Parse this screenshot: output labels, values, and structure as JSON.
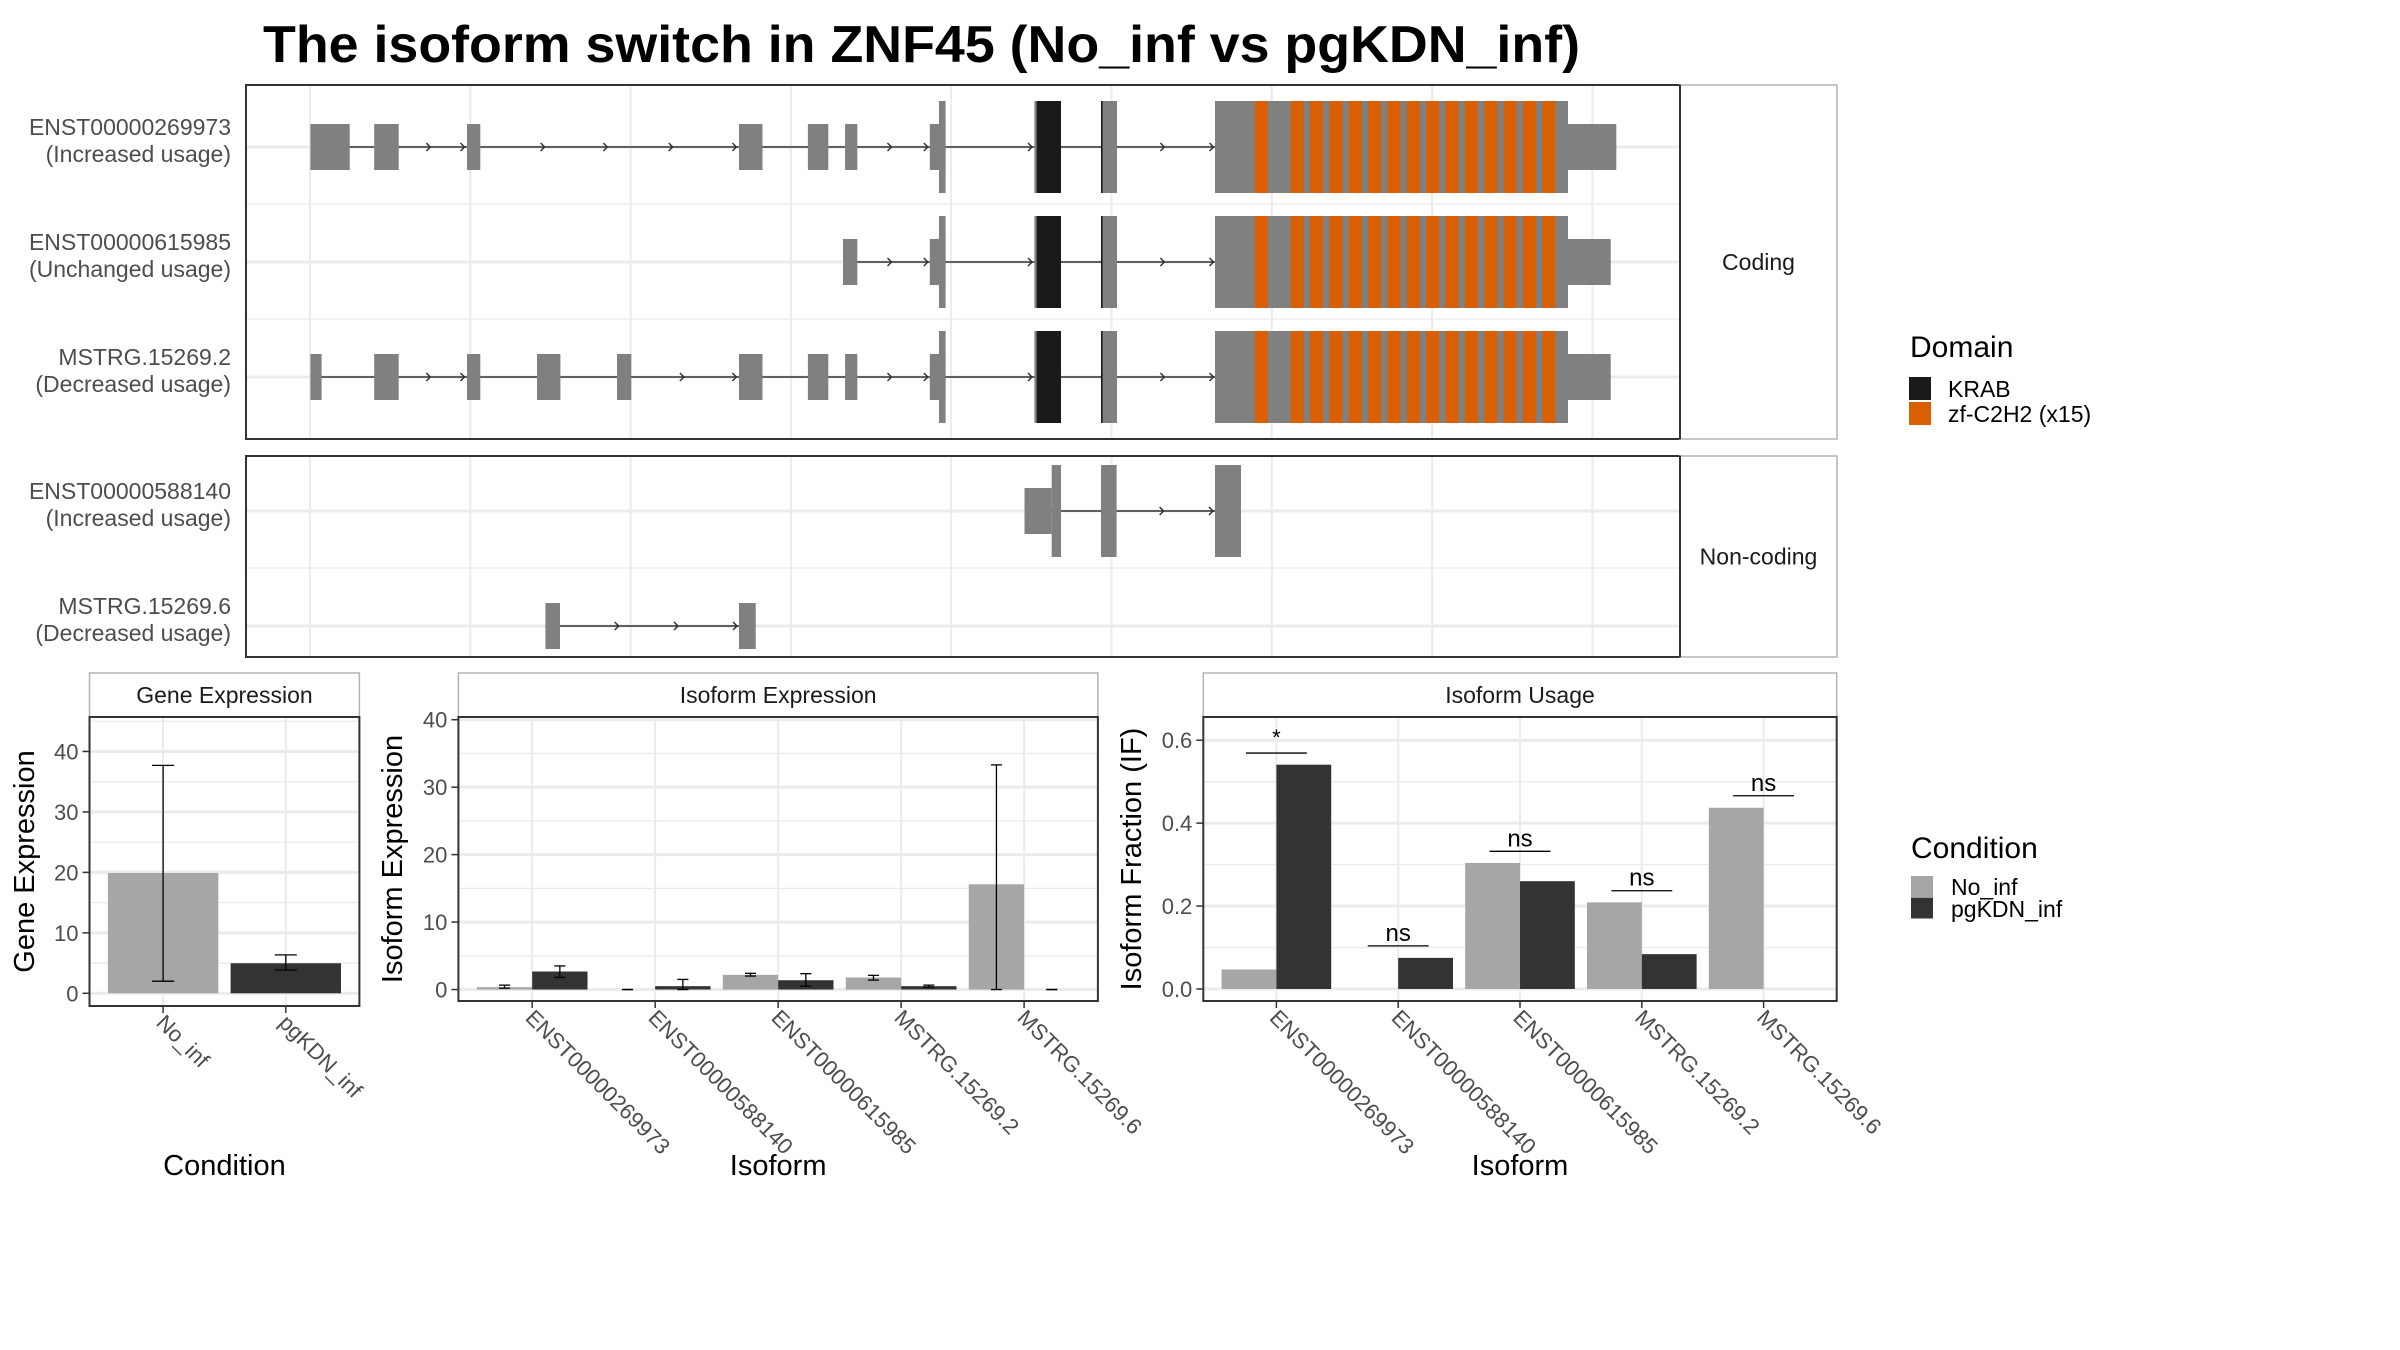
{
  "title": "The isoform switch in ZNF45 (No_inf vs pgKDN_inf)",
  "colors": {
    "exon": "#808080",
    "krab": "#1a1a1a",
    "zf_c2h2": "#d95f02",
    "no_inf": "#a6a6a6",
    "pgkdn_inf": "#333333",
    "grid": "#ebebeb",
    "panel_border": "#333333",
    "strip_border": "#b3b3b3",
    "tick_text": "#4d4d4d"
  },
  "transcript_plot": {
    "strips": [
      "Coding",
      "Non-coding"
    ],
    "transcripts": [
      {
        "id": "ENST00000269973",
        "usage": "(Increased usage)",
        "strip": "Coding"
      },
      {
        "id": "ENST00000615985",
        "usage": "(Unchanged usage)",
        "strip": "Coding"
      },
      {
        "id": "MSTRG.15269.2",
        "usage": "(Decreased usage)",
        "strip": "Coding"
      },
      {
        "id": "ENST00000588140",
        "usage": "(Increased usage)",
        "strip": "Non-coding"
      },
      {
        "id": "MSTRG.15269.6",
        "usage": "(Decreased usage)",
        "strip": "Non-coding"
      }
    ],
    "domain_legend": {
      "title": "Domain",
      "items": [
        {
          "label": "KRAB",
          "color": "#1a1a1a"
        },
        {
          "label": "zf-C2H2 (x15)",
          "color": "#d95f02"
        }
      ]
    }
  },
  "condition_legend": {
    "title": "Condition",
    "items": [
      {
        "label": "No_inf",
        "color": "#a6a6a6"
      },
      {
        "label": "pgKDN_inf",
        "color": "#333333"
      }
    ]
  },
  "chart_data": [
    {
      "type": "bar",
      "title": "Gene Expression",
      "xlabel": "Condition",
      "ylabel": "Gene Expression",
      "categories": [
        "No_inf",
        "pgKDN_inf"
      ],
      "category_colors": [
        "#a6a6a6",
        "#333333"
      ],
      "series": [
        {
          "name": "Gene Expression",
          "values": [
            19.9,
            4.97
          ],
          "error_low": [
            2.0,
            3.86
          ],
          "error_high": [
            37.7,
            6.35
          ]
        }
      ],
      "ylim": [
        -2.1,
        45.7
      ],
      "yticks": [
        0,
        10,
        20,
        30,
        40
      ],
      "ytick_labels": [
        "0",
        "10",
        "20",
        "30",
        "40"
      ],
      "grid": true
    },
    {
      "type": "bar",
      "title": "Isoform Expression",
      "xlabel": "Isoform",
      "ylabel": "Isoform Expression",
      "categories": [
        "ENST00000269973",
        "ENST00000588140",
        "ENST00000615985",
        "MSTRG.15269.2",
        "MSTRG.15269.6"
      ],
      "series": [
        {
          "name": "No_inf",
          "color": "#a6a6a6",
          "values": [
            0.35,
            0,
            2.18,
            1.78,
            15.6
          ],
          "error_low": [
            0.2,
            0,
            2.0,
            1.4,
            0
          ],
          "error_high": [
            0.65,
            0,
            2.4,
            2.1,
            33.3
          ]
        },
        {
          "name": "pgKDN_inf",
          "color": "#333333",
          "values": [
            2.67,
            0.5,
            1.38,
            0.5,
            0
          ],
          "error_low": [
            1.8,
            0,
            0.5,
            0.35,
            0
          ],
          "error_high": [
            3.5,
            1.5,
            2.35,
            0.65,
            0
          ]
        }
      ],
      "ylim": [
        -1.7,
        40.4
      ],
      "yticks": [
        0,
        10,
        20,
        30,
        40
      ],
      "ytick_labels": [
        "0",
        "10",
        "20",
        "30",
        "40"
      ],
      "grid": true
    },
    {
      "type": "bar",
      "title": "Isoform Usage",
      "xlabel": "Isoform",
      "ylabel": "Isoform Fraction (IF)",
      "categories": [
        "ENST00000269973",
        "ENST00000588140",
        "ENST00000615985",
        "MSTRG.15269.2",
        "MSTRG.15269.6"
      ],
      "series": [
        {
          "name": "No_inf",
          "color": "#a6a6a6",
          "values": [
            0.047,
            0,
            0.304,
            0.209,
            0.437
          ]
        },
        {
          "name": "pgKDN_inf",
          "color": "#333333",
          "values": [
            0.541,
            0.075,
            0.26,
            0.084,
            0
          ]
        }
      ],
      "significance": [
        {
          "label": "*",
          "y": 0.569
        },
        {
          "label": "ns",
          "y": 0.104
        },
        {
          "label": "ns",
          "y": 0.332
        },
        {
          "label": "ns",
          "y": 0.237
        },
        {
          "label": "ns",
          "y": 0.466
        }
      ],
      "ylim": [
        -0.029,
        0.656
      ],
      "yticks": [
        0,
        0.2,
        0.4,
        0.6
      ],
      "ytick_labels": [
        "0.0",
        "0.2",
        "0.4",
        "0.6"
      ],
      "grid": true
    }
  ]
}
